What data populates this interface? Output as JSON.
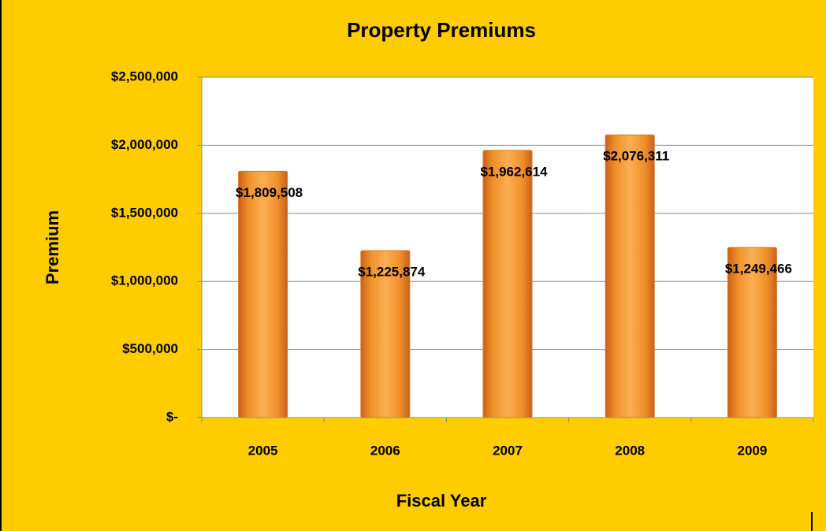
{
  "chart_data": {
    "type": "bar",
    "title": "Property Premiums",
    "x_label": "Fiscal Year",
    "y_label": "Premium",
    "categories": [
      "2005",
      "2006",
      "2007",
      "2008",
      "2009"
    ],
    "values": [
      1809508,
      1225874,
      1962614,
      2076311,
      1249466
    ],
    "value_labels": [
      "$1,809,508",
      "$1,225,874",
      "$1,962,614",
      "$2,076,311",
      "$1,249,466"
    ],
    "color": "#f7941d",
    "ylim": [
      0,
      2500000
    ],
    "yticks": [
      {
        "value": 0,
        "label": "$-"
      },
      {
        "value": 500000,
        "label": "$500,000"
      },
      {
        "value": 1000000,
        "label": "$1,000,000"
      },
      {
        "value": 1500000,
        "label": "$1,500,000"
      },
      {
        "value": 2000000,
        "label": "$2,000,000"
      },
      {
        "value": 2500000,
        "label": "$2,500,000"
      }
    ],
    "grid": true
  }
}
